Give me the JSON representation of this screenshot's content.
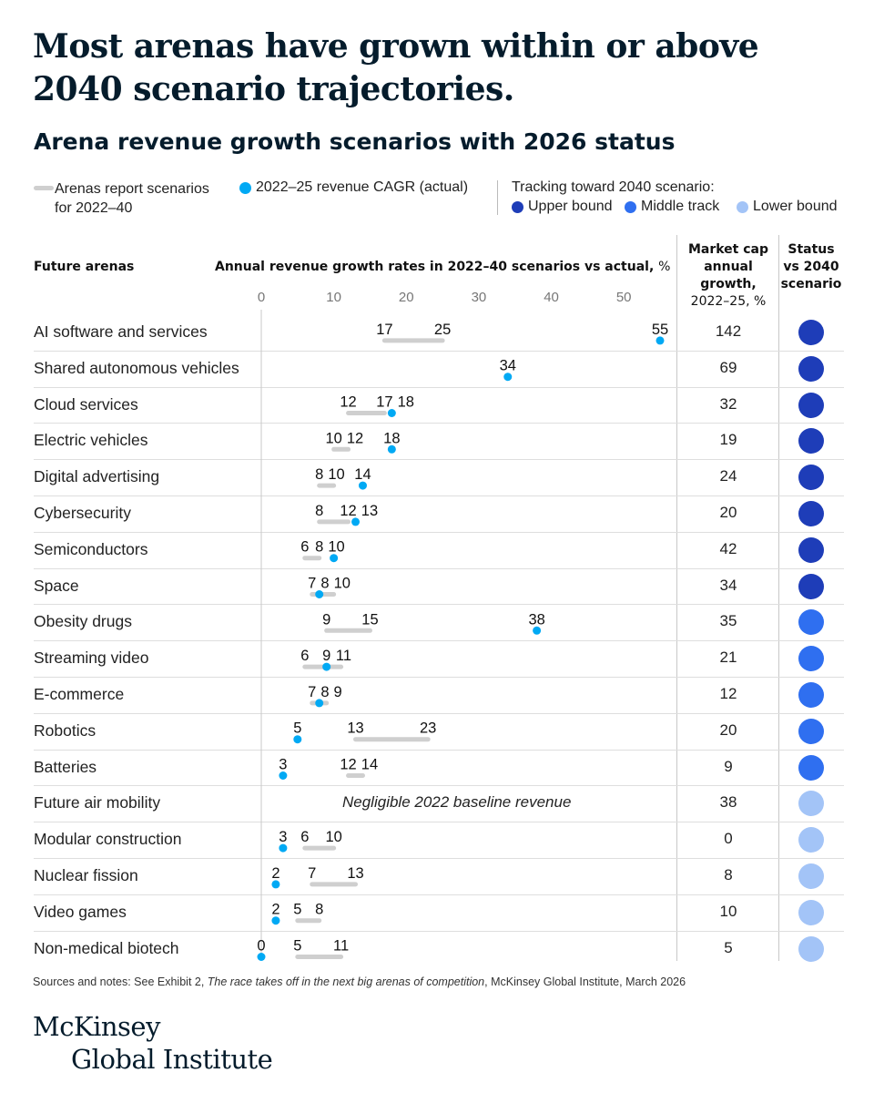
{
  "title": "Most arenas have grown within or above 2040 scenario trajectories.",
  "subtitle": "Arena revenue growth scenarios with 2026 status",
  "legend": {
    "scenario_label": "Arenas report scenarios for 2022–40",
    "actual_label": "2022–25 revenue CAGR (actual)",
    "tracking_label": "Tracking toward 2040 scenario:",
    "upper_label": "Upper bound",
    "middle_label": "Middle track",
    "lower_label": "Lower bound"
  },
  "headers": {
    "arenas": "Future arenas",
    "growth": "Annual revenue growth rates in 2022–40 scenarios vs actual,",
    "growth_unit": "%",
    "mcap_line1": "Market cap",
    "mcap_line2": "annual",
    "mcap_line3": "growth,",
    "mcap_line4": "2022–25, %",
    "status_line1": "Status",
    "status_line2": "vs 2040",
    "status_line3": "scenario"
  },
  "colors": {
    "upper": "#1e3db8",
    "middle": "#2f6ff0",
    "lower": "#a3c4f7",
    "actual": "#00a9f4",
    "scenario_bar": "#cfcfcf"
  },
  "chart_data": {
    "type": "range-dot",
    "xlabel": "Annual revenue growth rates in 2022–40 scenarios vs actual, %",
    "xlim": [
      0,
      57
    ],
    "xticks": [
      0,
      10,
      20,
      30,
      40,
      50
    ],
    "rows": [
      {
        "arena": "AI software and services",
        "scenarios": [
          17,
          25
        ],
        "actual": 55,
        "market_cap_growth": "142",
        "status": "upper"
      },
      {
        "arena": "Shared autonomous vehicles",
        "scenarios": [],
        "actual": 34,
        "market_cap_growth": "69",
        "status": "upper"
      },
      {
        "arena": "Cloud services",
        "scenarios": [
          12,
          17
        ],
        "actual": 18,
        "market_cap_growth": "32",
        "status": "upper"
      },
      {
        "arena": "Electric vehicles",
        "scenarios": [
          10,
          12
        ],
        "actual": 18,
        "market_cap_growth": "19",
        "status": "upper"
      },
      {
        "arena": "Digital advertising",
        "scenarios": [
          8,
          10
        ],
        "actual": 14,
        "market_cap_growth": "24",
        "status": "upper"
      },
      {
        "arena": "Cybersecurity",
        "scenarios": [
          8,
          12
        ],
        "actual": 13,
        "market_cap_growth": "20",
        "status": "upper"
      },
      {
        "arena": "Semiconductors",
        "scenarios": [
          6,
          8
        ],
        "actual": 10,
        "market_cap_growth": "42",
        "status": "upper"
      },
      {
        "arena": "Space",
        "scenarios": [
          7,
          10
        ],
        "actual": 8,
        "market_cap_growth": "34",
        "status": "upper"
      },
      {
        "arena": "Obesity drugs",
        "scenarios": [
          9,
          15
        ],
        "actual": 38,
        "market_cap_growth": "35",
        "status": "middle"
      },
      {
        "arena": "Streaming video",
        "scenarios": [
          6,
          11
        ],
        "actual": 9,
        "market_cap_growth": "21",
        "status": "middle"
      },
      {
        "arena": "E-commerce",
        "scenarios": [
          7,
          9
        ],
        "actual": 8,
        "market_cap_growth": "12",
        "status": "middle"
      },
      {
        "arena": "Robotics",
        "scenarios": [
          13,
          23
        ],
        "actual": 5,
        "market_cap_growth": "20",
        "status": "middle"
      },
      {
        "arena": "Batteries",
        "scenarios": [
          12,
          14
        ],
        "actual": 3,
        "market_cap_growth": "9",
        "status": "middle"
      },
      {
        "arena": "Future air mobility",
        "scenarios": [],
        "actual": null,
        "note": "Negligible 2022 baseline revenue",
        "market_cap_growth": "38",
        "status": "lower"
      },
      {
        "arena": "Modular construction",
        "scenarios": [
          6,
          10
        ],
        "actual": 3,
        "market_cap_growth": "0",
        "status": "lower"
      },
      {
        "arena": "Nuclear fission",
        "scenarios": [
          7,
          13
        ],
        "actual": 2,
        "market_cap_growth": "8",
        "status": "lower"
      },
      {
        "arena": "Video games",
        "scenarios": [
          5,
          8
        ],
        "actual": 2,
        "market_cap_growth": "10",
        "status": "lower"
      },
      {
        "arena": "Non-medical biotech",
        "scenarios": [
          5,
          11
        ],
        "actual": 0,
        "market_cap_growth": "5",
        "status": "lower"
      }
    ]
  },
  "footer": {
    "prefix": "Sources and notes: See Exhibit 2, ",
    "italic": "The race takes off in the next big arenas of competition",
    "suffix": ", McKinsey Global Institute, March 2026"
  },
  "logo": {
    "line1": "McKinsey",
    "line2": "Global Institute"
  }
}
